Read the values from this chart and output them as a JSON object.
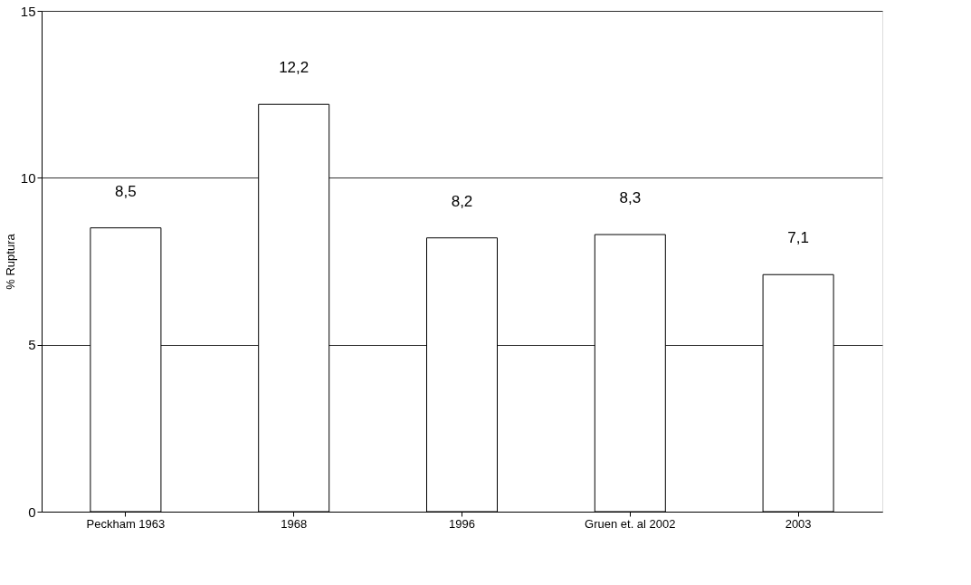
{
  "chart_data": {
    "type": "bar",
    "ylabel": "% Ruptura",
    "categories": [
      "Peckham 1963",
      "1968",
      "1996",
      "Gruen et. al 2002",
      "2003"
    ],
    "values": [
      8.5,
      12.2,
      8.2,
      8.3,
      7.1
    ],
    "value_labels": [
      "8,5",
      "12,2",
      "8,2",
      "8,3",
      "7,1"
    ],
    "color": "#ffffff",
    "ylim": [
      0,
      15
    ],
    "yticks": [
      0,
      5,
      10,
      15
    ],
    "grid": "y"
  }
}
